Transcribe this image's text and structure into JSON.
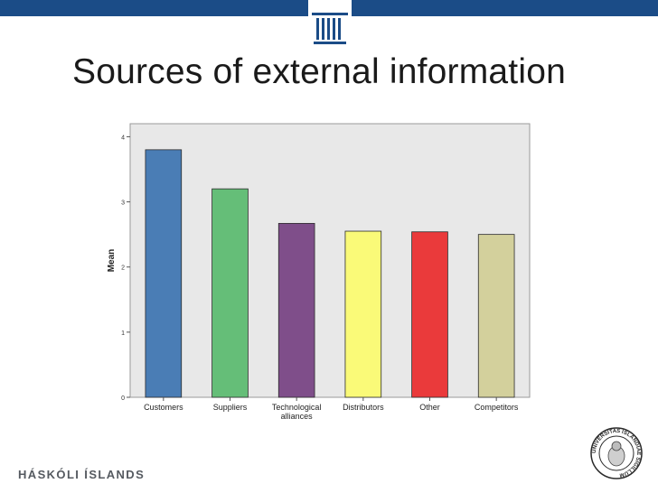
{
  "slide": {
    "title": "Sources of external information",
    "footer_text": "HÁSKÓLI ÍSLANDS",
    "seal_text": "UNIVERSITAS ISLANDIAE SIGILLUM"
  },
  "colors": {
    "top_bar": "#1b4c87",
    "plot_background": "#e8e8e8",
    "bar_outline": "#2b2b2b"
  },
  "chart_data": {
    "type": "bar",
    "title": "",
    "xlabel": "",
    "ylabel": "Mean",
    "ylim": [
      0,
      4.2
    ],
    "yticks": [
      0,
      1,
      2,
      3,
      4
    ],
    "grid": false,
    "legend": "none",
    "categories": [
      "Customers",
      "Suppliers",
      "Technological alliances",
      "Distributors",
      "Other",
      "Competitors"
    ],
    "category_label_lines": [
      [
        "Customers"
      ],
      [
        "Suppliers"
      ],
      [
        "Technological",
        "alliances"
      ],
      [
        "Distributors"
      ],
      [
        "Other"
      ],
      [
        "Competitors"
      ]
    ],
    "values": [
      3.8,
      3.2,
      2.67,
      2.55,
      2.54,
      2.5
    ],
    "bar_colors": [
      "#4a7db5",
      "#65be78",
      "#7f4e8a",
      "#fafa78",
      "#ea3a3b",
      "#d3d09c"
    ]
  }
}
